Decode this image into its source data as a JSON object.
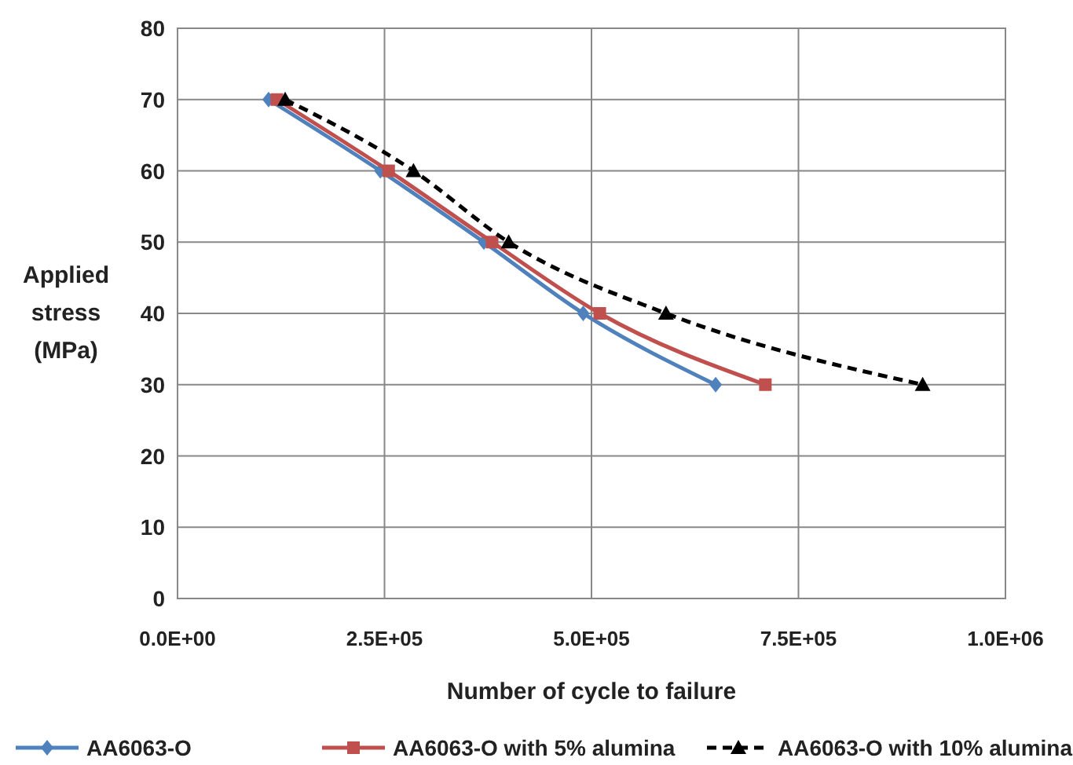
{
  "chart_data": {
    "type": "line",
    "xlabel": "Number of cycle to failure",
    "ylabel": "Applied stress (MPa)",
    "xlim": [
      0,
      1000000
    ],
    "xticks": [
      {
        "value": 0,
        "label": "0.0E+00"
      },
      {
        "value": 250000,
        "label": "2.5E+05"
      },
      {
        "value": 500000,
        "label": "5.0E+05"
      },
      {
        "value": 750000,
        "label": "7.5E+05"
      },
      {
        "value": 1000000,
        "label": "1.0E+06"
      }
    ],
    "ylim": [
      0,
      80
    ],
    "yticks": [
      0,
      10,
      20,
      30,
      40,
      50,
      60,
      70,
      80
    ],
    "grid": true,
    "legend": "bottom",
    "series": [
      {
        "name": "AA6063-O",
        "color": "#4f81bd",
        "marker": "diamond",
        "line_style": "solid",
        "x": [
          110000,
          245000,
          370000,
          490000,
          650000
        ],
        "values": [
          70,
          60,
          50,
          40,
          30
        ]
      },
      {
        "name": "AA6063-O with 5% alumina",
        "color": "#c0504d",
        "marker": "square",
        "line_style": "solid",
        "x": [
          120000,
          255000,
          380000,
          510000,
          710000
        ],
        "values": [
          70,
          60,
          50,
          40,
          30
        ]
      },
      {
        "name": "AA6063-O with 10% alumina",
        "color": "#000000",
        "marker": "triangle",
        "line_style": "dashed",
        "x": [
          130000,
          285000,
          400000,
          590000,
          900000
        ],
        "values": [
          70,
          60,
          50,
          40,
          30
        ]
      }
    ]
  }
}
